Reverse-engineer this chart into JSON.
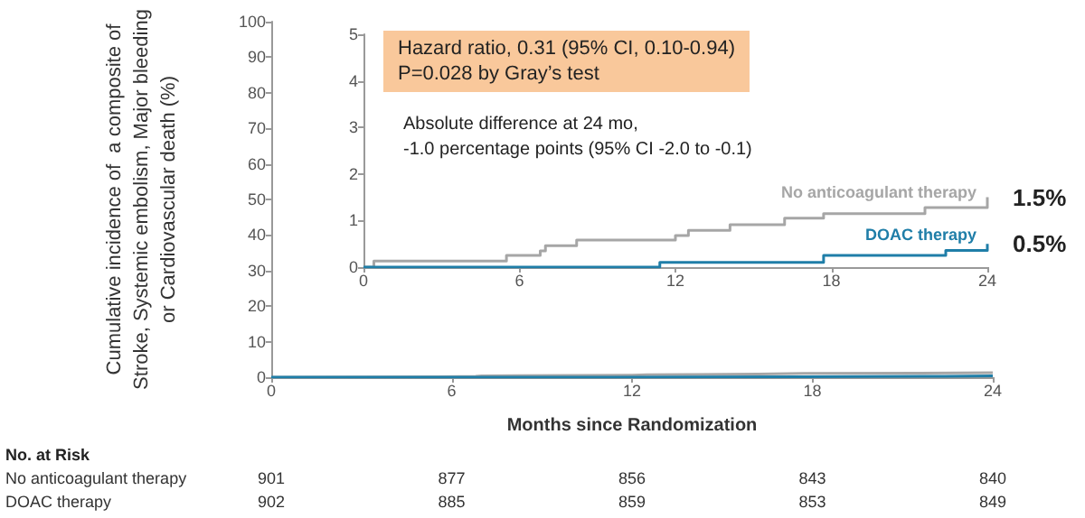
{
  "chart_data": [
    {
      "type": "step",
      "xlabel": "Months since Randomization",
      "ylabel": "Cumulative incidence of  a composite of\nStroke, Systemic embolism, Major bleeding\nor Cardiovascular death (%)",
      "xlim": [
        0,
        24
      ],
      "xticks": [
        0,
        6,
        12,
        18,
        24
      ],
      "ylim": [
        0,
        100
      ],
      "yticks": [
        0,
        10,
        20,
        30,
        40,
        50,
        60,
        70,
        80,
        90,
        100
      ],
      "grid": false,
      "legend": false,
      "marker": "none",
      "series": [
        {
          "color": "#a6a6a6",
          "x": [
            0,
            0.4,
            5.5,
            6.8,
            7.0,
            8.2,
            12.0,
            12.5,
            14.1,
            16.2,
            17.7,
            21.6,
            24
          ],
          "values": [
            0,
            0.13,
            0.25,
            0.35,
            0.46,
            0.58,
            0.68,
            0.79,
            0.91,
            1.05,
            1.15,
            1.28,
            1.5
          ]
        },
        {
          "color": "#1f7ea8",
          "x": [
            0,
            11.4,
            17.7,
            22.4,
            24
          ],
          "values": [
            0,
            0.1,
            0.25,
            0.36,
            0.5
          ]
        }
      ],
      "annotations": [
        "No. at Risk",
        "No anticoagulant therapy",
        "901",
        "877",
        "856",
        "843",
        "840",
        "DOAC therapy",
        "902",
        "885",
        "859",
        "853",
        "849"
      ]
    },
    {
      "type": "step",
      "xlim": [
        0,
        24
      ],
      "xticks": [
        0,
        6,
        12,
        18,
        24
      ],
      "ylim": [
        0,
        5
      ],
      "yticks": [
        0,
        1,
        2,
        3,
        4,
        5
      ],
      "grid": false,
      "legend": false,
      "marker": "none",
      "series": [
        {
          "name": "No anticoagulant therapy",
          "color": "#a6a6a6",
          "x": [
            0,
            0.4,
            5.5,
            6.8,
            7.0,
            8.2,
            12.0,
            12.5,
            14.1,
            16.2,
            17.7,
            21.6,
            24
          ],
          "values": [
            0,
            0.13,
            0.25,
            0.35,
            0.46,
            0.58,
            0.68,
            0.79,
            0.91,
            1.05,
            1.15,
            1.28,
            1.5
          ]
        },
        {
          "name": "DOAC therapy",
          "color": "#1f7ea8",
          "x": [
            0,
            11.4,
            17.7,
            22.4,
            24
          ],
          "values": [
            0,
            0.1,
            0.25,
            0.36,
            0.5
          ]
        }
      ],
      "annotations": [
        "Hazard ratio, 0.31 (95% CI, 0.10-0.94)\nP=0.028 by Gray’s test",
        "Absolute difference at 24 mo,\n-1.0 percentage points (95% CI -2.0 to -0.1)",
        {
          "text": "1.5%",
          "x": 24,
          "y": 1.5
        },
        {
          "text": "0.5%",
          "x": 24,
          "y": 0.5
        }
      ]
    }
  ]
}
